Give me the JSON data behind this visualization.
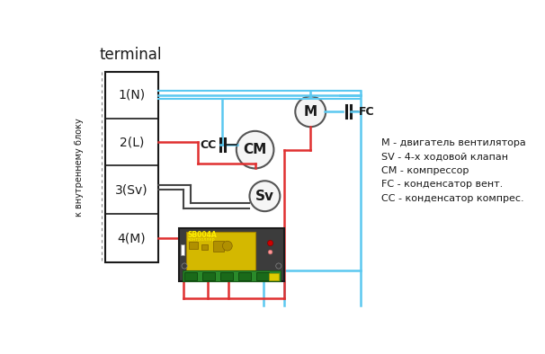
{
  "title": "terminal",
  "vertical_label": "к внутреннему блоку",
  "terminal_labels": [
    "1(N)",
    "2(L)",
    "3(Sv)",
    "4(M)"
  ],
  "legend_lines": [
    "M - двигатель вентилятора",
    "SV - 4-х ходовой клапан",
    "CM - компрессор",
    "FC - конденсатор вент.",
    "CC - конденсатор компрес."
  ],
  "blue_color": "#5bc8f0",
  "red_color": "#e03030",
  "black_color": "#1a1a1a",
  "dark_gray": "#444444",
  "gray_color": "#888888",
  "bg_color": "#ffffff",
  "circle_edge": "#555555",
  "circle_fill": "#f5f5f5",
  "module_dark": "#3c3c3c",
  "module_yellow": "#d4b800",
  "module_green": "#2a8a2a"
}
